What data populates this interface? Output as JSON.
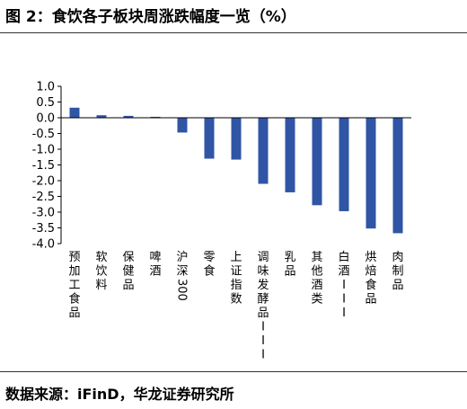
{
  "header": {
    "title": "图 2：食饮各子板块周涨跌幅度一览（%）"
  },
  "footer": {
    "source": "数据来源：iFinD，华龙证券研究所"
  },
  "chart_data": {
    "type": "bar",
    "title": "",
    "xlabel": "",
    "ylabel": "",
    "ylim": [
      -4.0,
      1.0
    ],
    "yticks": [
      1.0,
      0.5,
      0.0,
      -0.5,
      -1.0,
      -1.5,
      -2.0,
      -2.5,
      -3.0,
      -3.5,
      -4.0
    ],
    "ytick_labels": [
      "1.0",
      "0.5",
      "0.0",
      "-0.5",
      "-1.0",
      "-1.5",
      "-2.0",
      "-2.5",
      "-3.0",
      "-3.5",
      "-4.0"
    ],
    "grid": false,
    "legend": "none",
    "bar_color": "#2f55a4",
    "categories": [
      "预加工食品",
      "软饮料",
      "保健品",
      "啤酒",
      "沪深300",
      "零食",
      "上证指数",
      "调味发酵品III",
      "乳品",
      "其他酒类",
      "白酒III",
      "烘焙食品",
      "肉制品"
    ],
    "values": [
      0.32,
      0.08,
      0.06,
      0.03,
      -0.47,
      -1.3,
      -1.33,
      -2.1,
      -2.37,
      -2.78,
      -2.97,
      -3.52,
      -3.67
    ]
  }
}
